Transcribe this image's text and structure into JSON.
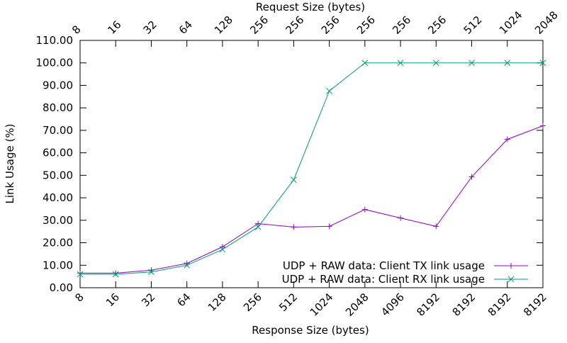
{
  "chart_data": {
    "type": "line",
    "xlabel": "Response Size (bytes)",
    "x2label": "Request Size (bytes)",
    "ylabel": "Link Usage (%)",
    "x_ticks_bottom": [
      "8",
      "16",
      "32",
      "64",
      "128",
      "256",
      "512",
      "1024",
      "2048",
      "4096",
      "8192",
      "8192",
      "8192",
      "8192"
    ],
    "x_ticks_top": [
      "8",
      "16",
      "32",
      "64",
      "128",
      "256",
      "256",
      "256",
      "256",
      "256",
      "256",
      "512",
      "1024",
      "2048"
    ],
    "y_ticks": [
      "0.00",
      "10.00",
      "20.00",
      "30.00",
      "40.00",
      "50.00",
      "60.00",
      "70.00",
      "80.00",
      "90.00",
      "100.00",
      "110.00"
    ],
    "ylim": [
      0,
      110
    ],
    "grid": false,
    "legend_position": "bottom-right",
    "series": [
      {
        "name": "UDP + RAW data: Client TX link usage",
        "color": "#9400d3",
        "marker": "plus",
        "values": [
          6.5,
          6.5,
          7.8,
          10.8,
          18.2,
          28.5,
          27.0,
          27.3,
          34.8,
          31.0,
          27.3,
          49.3,
          66.0,
          72.0
        ]
      },
      {
        "name": "UDP + RAW data: Client RX link usage",
        "color": "#009e73",
        "marker": "cross",
        "values": [
          6.0,
          6.0,
          7.0,
          10.0,
          17.0,
          27.0,
          48.0,
          87.5,
          100.0,
          100.0,
          100.0,
          100.0,
          100.0,
          100.0
        ]
      }
    ]
  }
}
